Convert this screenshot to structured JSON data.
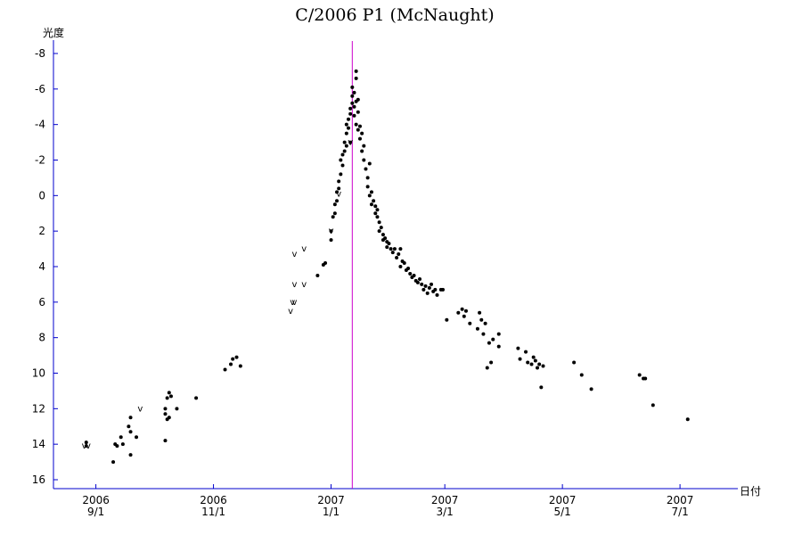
{
  "chart_data": {
    "type": "scatter",
    "title": "C/2006 P1 (McNaught)",
    "ylabel": "光度",
    "xlabel": "日付",
    "y_reversed": true,
    "ylim": [
      16,
      -8
    ],
    "y_ticks": [
      16,
      14,
      12,
      10,
      8,
      6,
      4,
      2,
      0,
      -2,
      -4,
      -6,
      -8
    ],
    "y_tick_labels": [
      "16",
      "14",
      "12",
      "10",
      "8",
      "6",
      "4",
      "2",
      "0",
      "-2",
      "-4",
      "-6",
      "-8"
    ],
    "xlim": [
      "2006-08-10",
      "2007-07-31"
    ],
    "x_ticks": [
      {
        "date": "2006-09-01",
        "year": "2006",
        "label": "9/1"
      },
      {
        "date": "2006-11-01",
        "year": "2006",
        "label": "11/1"
      },
      {
        "date": "2007-01-01",
        "year": "2007",
        "label": "1/1"
      },
      {
        "date": "2007-03-01",
        "year": "2007",
        "label": "3/1"
      },
      {
        "date": "2007-05-01",
        "year": "2007",
        "label": "5/1"
      },
      {
        "date": "2007-07-01",
        "year": "2007",
        "label": "7/1"
      }
    ],
    "perihelion_marker": {
      "date": "2007-01-12",
      "color": "#cc00cc"
    },
    "axis_color": "#0000cc",
    "point_color": "#000000",
    "grid": false,
    "limit_marker_symbol": "v",
    "observations": [
      [
        "2006-08-27",
        13.9
      ],
      [
        "2006-08-27",
        14.1
      ],
      [
        "2006-09-10",
        15.0
      ],
      [
        "2006-09-11",
        14.0
      ],
      [
        "2006-09-12",
        14.1
      ],
      [
        "2006-09-14",
        13.6
      ],
      [
        "2006-09-15",
        14.0
      ],
      [
        "2006-09-18",
        13.0
      ],
      [
        "2006-09-19",
        13.3
      ],
      [
        "2006-09-19",
        14.6
      ],
      [
        "2006-09-19",
        12.5
      ],
      [
        "2006-09-22",
        13.6
      ],
      [
        "2006-10-07",
        12.3
      ],
      [
        "2006-10-07",
        12.0
      ],
      [
        "2006-10-07",
        13.8
      ],
      [
        "2006-10-08",
        11.4
      ],
      [
        "2006-10-08",
        12.6
      ],
      [
        "2006-10-09",
        11.1
      ],
      [
        "2006-10-09",
        12.5
      ],
      [
        "2006-10-10",
        11.3
      ],
      [
        "2006-10-13",
        12.0
      ],
      [
        "2006-10-23",
        11.4
      ],
      [
        "2006-11-07",
        9.8
      ],
      [
        "2006-11-10",
        9.5
      ],
      [
        "2006-11-11",
        9.2
      ],
      [
        "2006-11-13",
        9.1
      ],
      [
        "2006-11-15",
        9.6
      ],
      [
        "2006-12-25",
        4.5
      ],
      [
        "2006-12-28",
        3.9
      ],
      [
        "2006-12-29",
        3.8
      ],
      [
        "2007-01-01",
        2.5
      ],
      [
        "2007-01-01",
        2.0
      ],
      [
        "2007-01-02",
        1.2
      ],
      [
        "2007-01-03",
        1.0
      ],
      [
        "2007-01-03",
        0.5
      ],
      [
        "2007-01-04",
        0.3
      ],
      [
        "2007-01-04",
        -0.2
      ],
      [
        "2007-01-05",
        -0.8
      ],
      [
        "2007-01-05",
        -0.4
      ],
      [
        "2007-01-06",
        -1.2
      ],
      [
        "2007-01-06",
        -2.0
      ],
      [
        "2007-01-07",
        -2.3
      ],
      [
        "2007-01-07",
        -1.7
      ],
      [
        "2007-01-08",
        -3.0
      ],
      [
        "2007-01-08",
        -2.5
      ],
      [
        "2007-01-09",
        -3.5
      ],
      [
        "2007-01-09",
        -4.0
      ],
      [
        "2007-01-09",
        -2.8
      ],
      [
        "2007-01-10",
        -4.3
      ],
      [
        "2007-01-10",
        -3.8
      ],
      [
        "2007-01-11",
        -4.6
      ],
      [
        "2007-01-11",
        -4.9
      ],
      [
        "2007-01-11",
        -3.0
      ],
      [
        "2007-01-12",
        -5.2
      ],
      [
        "2007-01-12",
        -5.6
      ],
      [
        "2007-01-12",
        -6.1
      ],
      [
        "2007-01-13",
        -5.8
      ],
      [
        "2007-01-13",
        -5.0
      ],
      [
        "2007-01-13",
        -4.5
      ],
      [
        "2007-01-14",
        -7.0
      ],
      [
        "2007-01-14",
        -6.6
      ],
      [
        "2007-01-14",
        -5.3
      ],
      [
        "2007-01-14",
        -4.0
      ],
      [
        "2007-01-15",
        -4.7
      ],
      [
        "2007-01-15",
        -3.7
      ],
      [
        "2007-01-15",
        -5.4
      ],
      [
        "2007-01-16",
        -3.2
      ],
      [
        "2007-01-16",
        -3.9
      ],
      [
        "2007-01-17",
        -2.5
      ],
      [
        "2007-01-17",
        -3.5
      ],
      [
        "2007-01-18",
        -2.0
      ],
      [
        "2007-01-18",
        -2.8
      ],
      [
        "2007-01-19",
        -1.5
      ],
      [
        "2007-01-20",
        -1.0
      ],
      [
        "2007-01-20",
        -0.5
      ],
      [
        "2007-01-21",
        -1.8
      ],
      [
        "2007-01-21",
        0.0
      ],
      [
        "2007-01-22",
        -0.2
      ],
      [
        "2007-01-22",
        0.5
      ],
      [
        "2007-01-23",
        0.3
      ],
      [
        "2007-01-24",
        1.0
      ],
      [
        "2007-01-24",
        0.6
      ],
      [
        "2007-01-25",
        1.2
      ],
      [
        "2007-01-25",
        0.8
      ],
      [
        "2007-01-26",
        1.5
      ],
      [
        "2007-01-26",
        2.0
      ],
      [
        "2007-01-27",
        1.8
      ],
      [
        "2007-01-28",
        2.2
      ],
      [
        "2007-01-28",
        2.5
      ],
      [
        "2007-01-29",
        2.4
      ],
      [
        "2007-01-30",
        2.6
      ],
      [
        "2007-01-30",
        2.9
      ],
      [
        "2007-01-31",
        2.7
      ],
      [
        "2007-02-01",
        3.0
      ],
      [
        "2007-02-02",
        3.2
      ],
      [
        "2007-02-03",
        3.0
      ],
      [
        "2007-02-04",
        3.5
      ],
      [
        "2007-02-05",
        3.3
      ],
      [
        "2007-02-06",
        4.0
      ],
      [
        "2007-02-06",
        3.0
      ],
      [
        "2007-02-07",
        3.7
      ],
      [
        "2007-02-08",
        3.8
      ],
      [
        "2007-02-09",
        4.2
      ],
      [
        "2007-02-10",
        4.1
      ],
      [
        "2007-02-11",
        4.4
      ],
      [
        "2007-02-12",
        4.6
      ],
      [
        "2007-02-13",
        4.5
      ],
      [
        "2007-02-14",
        4.8
      ],
      [
        "2007-02-15",
        4.9
      ],
      [
        "2007-02-16",
        4.7
      ],
      [
        "2007-02-17",
        5.0
      ],
      [
        "2007-02-18",
        5.3
      ],
      [
        "2007-02-19",
        5.1
      ],
      [
        "2007-02-20",
        5.5
      ],
      [
        "2007-02-21",
        5.2
      ],
      [
        "2007-02-22",
        5.0
      ],
      [
        "2007-02-23",
        5.4
      ],
      [
        "2007-02-24",
        5.3
      ],
      [
        "2007-02-25",
        5.6
      ],
      [
        "2007-02-27",
        5.3
      ],
      [
        "2007-02-28",
        5.3
      ],
      [
        "2007-03-02",
        7.0
      ],
      [
        "2007-03-08",
        6.6
      ],
      [
        "2007-03-10",
        6.4
      ],
      [
        "2007-03-11",
        6.8
      ],
      [
        "2007-03-12",
        6.5
      ],
      [
        "2007-03-14",
        7.2
      ],
      [
        "2007-03-18",
        7.5
      ],
      [
        "2007-03-19",
        6.6
      ],
      [
        "2007-03-20",
        7.0
      ],
      [
        "2007-03-21",
        7.8
      ],
      [
        "2007-03-22",
        7.2
      ],
      [
        "2007-03-23",
        9.7
      ],
      [
        "2007-03-24",
        8.3
      ],
      [
        "2007-03-25",
        9.4
      ],
      [
        "2007-03-26",
        8.1
      ],
      [
        "2007-03-29",
        8.5
      ],
      [
        "2007-03-29",
        7.8
      ],
      [
        "2007-04-08",
        8.6
      ],
      [
        "2007-04-09",
        9.2
      ],
      [
        "2007-04-12",
        8.8
      ],
      [
        "2007-04-13",
        9.4
      ],
      [
        "2007-04-15",
        9.5
      ],
      [
        "2007-04-16",
        9.1
      ],
      [
        "2007-04-17",
        9.3
      ],
      [
        "2007-04-18",
        9.7
      ],
      [
        "2007-04-19",
        9.5
      ],
      [
        "2007-04-20",
        10.8
      ],
      [
        "2007-04-21",
        9.6
      ],
      [
        "2007-05-07",
        9.4
      ],
      [
        "2007-05-11",
        10.1
      ],
      [
        "2007-05-16",
        10.9
      ],
      [
        "2007-06-10",
        10.1
      ],
      [
        "2007-06-12",
        10.3
      ],
      [
        "2007-06-13",
        10.3
      ],
      [
        "2007-06-17",
        11.8
      ],
      [
        "2007-07-05",
        12.6
      ]
    ],
    "upper_limits": [
      [
        "2006-08-26",
        14.1
      ],
      [
        "2006-08-28",
        14.1
      ],
      [
        "2006-09-24",
        12.0
      ],
      [
        "2006-12-11",
        6.5
      ],
      [
        "2006-12-12",
        6.0
      ],
      [
        "2006-12-13",
        6.0
      ],
      [
        "2006-12-13",
        5.0
      ],
      [
        "2006-12-13",
        3.3
      ],
      [
        "2006-12-18",
        5.0
      ],
      [
        "2006-12-18",
        3.0
      ],
      [
        "2007-01-01",
        2.0
      ],
      [
        "2007-01-05",
        -0.1
      ],
      [
        "2007-01-11",
        -3.0
      ]
    ]
  }
}
